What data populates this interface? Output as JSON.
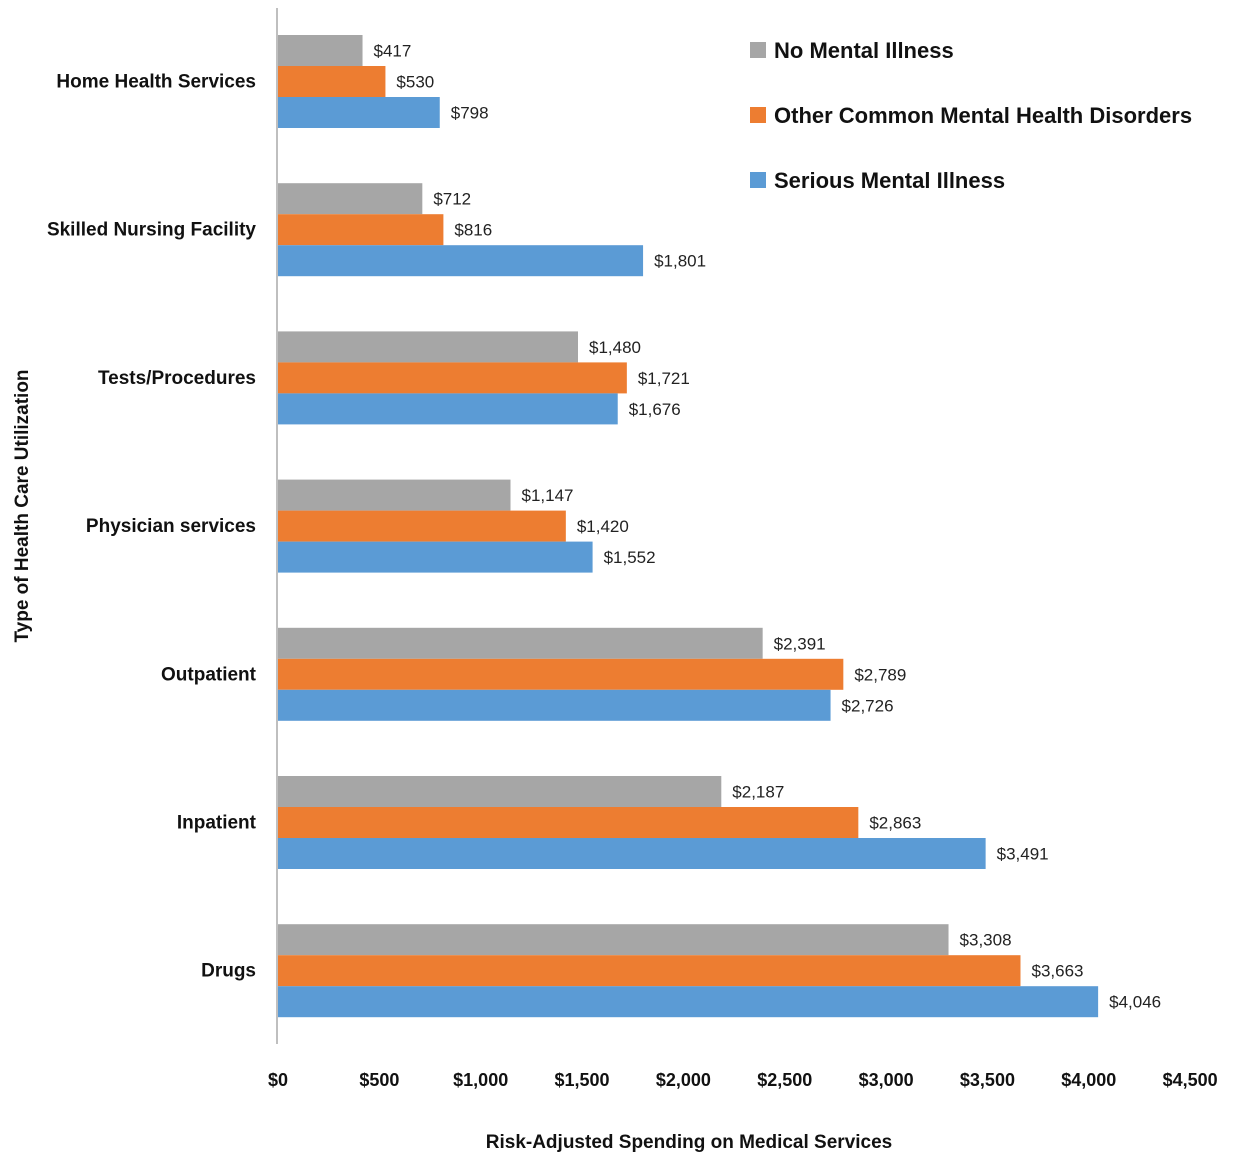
{
  "chart_data": {
    "type": "bar",
    "orientation": "horizontal",
    "categories": [
      "Home Health Services",
      "Skilled Nursing Facility",
      "Tests/Procedures",
      "Physician services",
      "Outpatient",
      "Inpatient",
      "Drugs"
    ],
    "series": [
      {
        "name": "No Mental Illness",
        "color": "#a6a6a6",
        "values": [
          417,
          712,
          1480,
          1147,
          2391,
          2187,
          3308
        ],
        "labels": [
          "$417",
          "$712",
          "$1,480",
          "$1,147",
          "$2,391",
          "$2,187",
          "$3,308"
        ]
      },
      {
        "name": "Other Common Mental Health Disorders",
        "color": "#ed7d31",
        "values": [
          530,
          816,
          1721,
          1420,
          2789,
          2863,
          3663
        ],
        "labels": [
          "$530",
          "$816",
          "$1,721",
          "$1,420",
          "$2,789",
          "$2,863",
          "$3,663"
        ]
      },
      {
        "name": "Serious Mental Illness",
        "color": "#5b9bd5",
        "values": [
          798,
          1801,
          1676,
          1552,
          2726,
          3491,
          4046
        ],
        "labels": [
          "$798",
          "$1,801",
          "$1,676",
          "$1,552",
          "$2,726",
          "$3,491",
          "$4,046"
        ]
      }
    ],
    "xlabel": "Risk-Adjusted Spending on Medical Services",
    "ylabel": "Type of Health Care Utilization",
    "xlim": [
      0,
      4500
    ],
    "xticks": [
      0,
      500,
      1000,
      1500,
      2000,
      2500,
      3000,
      3500,
      4000,
      4500
    ],
    "xtick_labels": [
      "$0",
      "$500",
      "$1,000",
      "$1,500",
      "$2,000",
      "$2,500",
      "$3,000",
      "$3,500",
      "$4,000",
      "$4,500"
    ],
    "grid": false,
    "legend_position": "top-right"
  }
}
